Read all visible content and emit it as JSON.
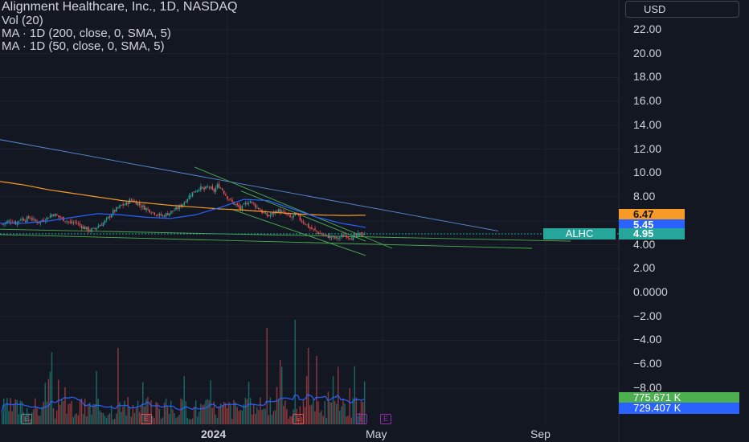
{
  "legend": {
    "title": "Alignment Healthcare, Inc., 1D, NASDAQ",
    "vol": "Vol (20)",
    "ma200": "MA · 1D (200, close, 0, SMA, 5)",
    "ma50": "MA · 1D (50, close, 0, SMA, 5)"
  },
  "currency": "USD",
  "badges": {
    "ma200_value": "6.47",
    "ma50_value": "5.45",
    "last_price": "4.95",
    "ticker": "ALHC",
    "vol_value": "775.671 K",
    "vol_ma_value": "729.407 K"
  },
  "colors": {
    "background": "#131722",
    "up": "#26a69a",
    "down": "#ef5350",
    "ma200": "#f79a26",
    "ma50": "#2962ff",
    "trendline_blue": "#5b8dd9",
    "trendline_green": "#4caf50",
    "event_green": "#26a69a",
    "event_red": "#ef5350",
    "event_purple": "#9c27b0"
  },
  "y_axis_labels": [
    "22.00",
    "20.00",
    "18.00",
    "16.00",
    "14.00",
    "12.00",
    "10.00",
    "8.00",
    "6.00",
    "4.00",
    "2.00",
    "0.0000",
    "−2.00",
    "−4.00",
    "−6.00",
    "−8.00"
  ],
  "x_axis_labels": [
    {
      "text": "2024",
      "bold": true
    },
    {
      "text": "May",
      "bold": false
    },
    {
      "text": "Sep",
      "bold": false
    }
  ],
  "event_markers": [
    {
      "label": "E",
      "color": "green"
    },
    {
      "label": "E",
      "color": "red"
    },
    {
      "label": "E",
      "color": "red"
    },
    {
      "label": "E",
      "color": "purple"
    },
    {
      "label": "E",
      "color": "purple"
    }
  ],
  "chart_data": {
    "type": "candlestick",
    "y_range": [
      -9,
      23
    ],
    "last_price": 4.95,
    "moving_averages": [
      {
        "name": "MA 200",
        "value": 6.47
      },
      {
        "name": "MA 50",
        "value": 5.45
      }
    ],
    "close_path": [
      5.7,
      5.9,
      6.0,
      5.8,
      6.2,
      6.1,
      6.3,
      6.0,
      5.9,
      6.1,
      6.3,
      6.6,
      6.4,
      6.2,
      6.0,
      5.8,
      5.9,
      5.6,
      5.4,
      5.2,
      5.3,
      5.6,
      5.8,
      6.2,
      6.7,
      7.0,
      7.3,
      7.4,
      7.8,
      7.6,
      7.3,
      7.1,
      6.9,
      6.7,
      6.5,
      6.4,
      6.6,
      6.8,
      7.0,
      7.3,
      7.7,
      8.2,
      8.5,
      8.8,
      8.6,
      8.9,
      8.4,
      9.0,
      8.6,
      8.0,
      7.6,
      7.3,
      7.0,
      7.4,
      7.7,
      7.3,
      7.0,
      6.6,
      6.4,
      6.6,
      6.9,
      6.7,
      6.5,
      6.2,
      6.6,
      6.1,
      5.8,
      5.4,
      5.2,
      5.0,
      4.8,
      4.7,
      4.6,
      4.5,
      4.7,
      4.8,
      4.6,
      4.7,
      4.9,
      4.95
    ],
    "ma200_path": [
      9.3,
      9.0,
      8.6,
      8.3,
      8.0,
      7.7,
      7.5,
      7.3,
      7.15,
      7.0,
      6.9,
      6.75,
      6.6,
      6.5,
      6.45,
      6.47
    ],
    "ma50_path": [
      5.8,
      5.8,
      6.0,
      6.3,
      6.6,
      6.5,
      6.3,
      6.2,
      6.5,
      7.1,
      7.8,
      7.7,
      7.0,
      6.3,
      5.8,
      5.45
    ],
    "volume_ma_label": "729.407 K",
    "volume_label": "775.671 K"
  }
}
